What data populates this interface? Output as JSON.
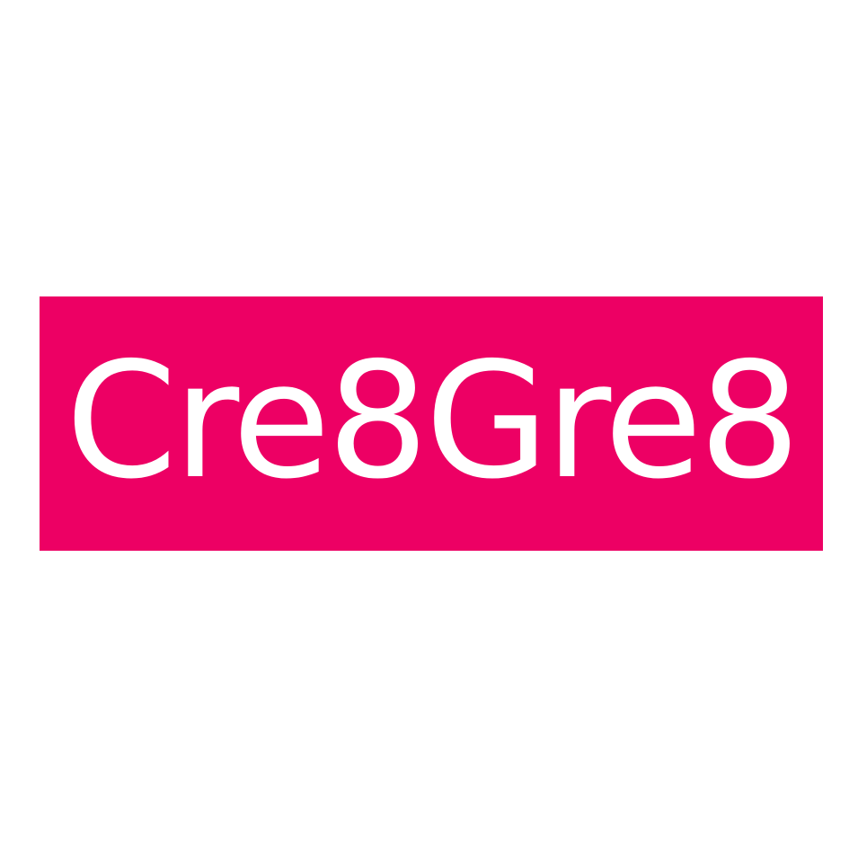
{
  "brand": {
    "name": "Cre8Gre8",
    "background_color": "#ffffff",
    "banner_color": "#ED0064",
    "text_color": "#ffffff"
  }
}
